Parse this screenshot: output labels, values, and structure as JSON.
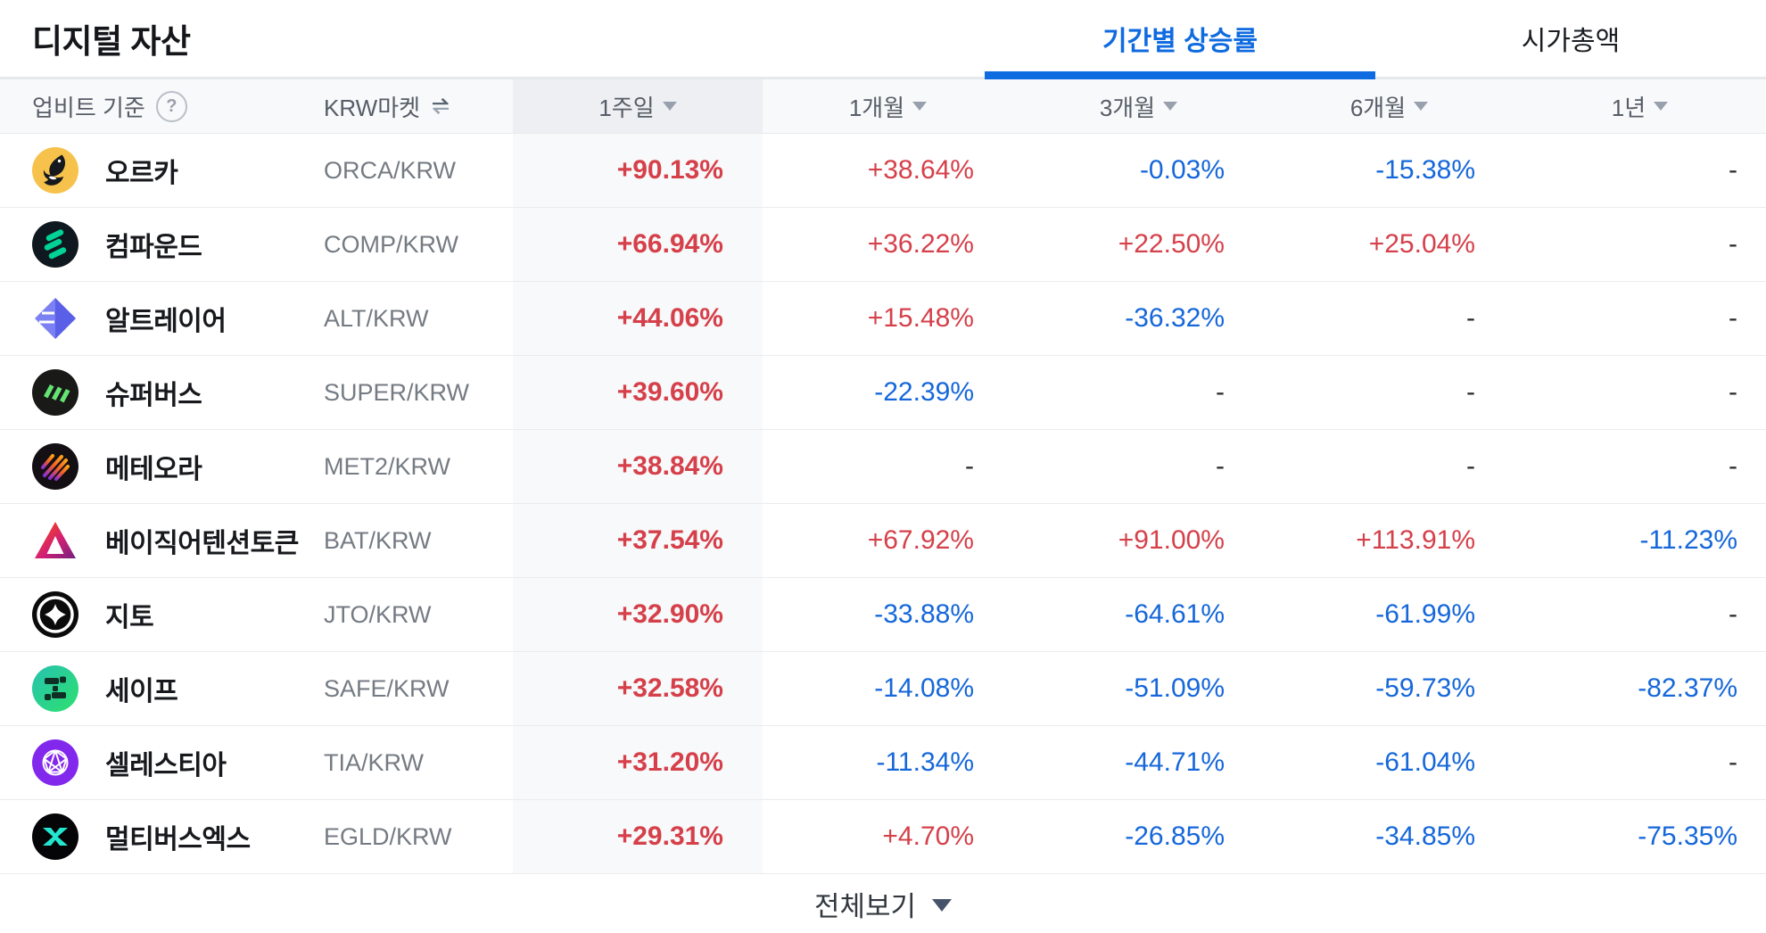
{
  "header": {
    "title": "디지털 자산",
    "tabs": [
      {
        "label": "기간별 상승률",
        "active": true
      },
      {
        "label": "시가총액",
        "active": false
      }
    ]
  },
  "table": {
    "source_label": "업비트 기준",
    "help_glyph": "?",
    "market_label": "KRW마켓",
    "periods": [
      "1주일",
      "1개월",
      "3개월",
      "6개월",
      "1년"
    ],
    "rows": [
      {
        "name": "오르카",
        "pair": "ORCA/KRW",
        "icon": "orca-coin-icon",
        "values": [
          "+90.13%",
          "+38.64%",
          "-0.03%",
          "-15.38%",
          "-"
        ]
      },
      {
        "name": "컴파운드",
        "pair": "COMP/KRW",
        "icon": "compound-coin-icon",
        "values": [
          "+66.94%",
          "+36.22%",
          "+22.50%",
          "+25.04%",
          "-"
        ]
      },
      {
        "name": "알트레이어",
        "pair": "ALT/KRW",
        "icon": "altlayer-coin-icon",
        "values": [
          "+44.06%",
          "+15.48%",
          "-36.32%",
          "-",
          "-"
        ]
      },
      {
        "name": "슈퍼버스",
        "pair": "SUPER/KRW",
        "icon": "superverse-coin-icon",
        "values": [
          "+39.60%",
          "-22.39%",
          "-",
          "-",
          "-"
        ]
      },
      {
        "name": "메테오라",
        "pair": "MET2/KRW",
        "icon": "meteora-coin-icon",
        "values": [
          "+38.84%",
          "-",
          "-",
          "-",
          "-"
        ]
      },
      {
        "name": "베이직어텐션토큰",
        "pair": "BAT/KRW",
        "icon": "bat-coin-icon",
        "values": [
          "+37.54%",
          "+67.92%",
          "+91.00%",
          "+113.91%",
          "-11.23%"
        ]
      },
      {
        "name": "지토",
        "pair": "JTO/KRW",
        "icon": "jito-coin-icon",
        "values": [
          "+32.90%",
          "-33.88%",
          "-64.61%",
          "-61.99%",
          "-"
        ]
      },
      {
        "name": "세이프",
        "pair": "SAFE/KRW",
        "icon": "safe-coin-icon",
        "values": [
          "+32.58%",
          "-14.08%",
          "-51.09%",
          "-59.73%",
          "-82.37%"
        ]
      },
      {
        "name": "셀레스티아",
        "pair": "TIA/KRW",
        "icon": "celestia-coin-icon",
        "values": [
          "+31.20%",
          "-11.34%",
          "-44.71%",
          "-61.04%",
          "-"
        ]
      },
      {
        "name": "멀티버스엑스",
        "pair": "EGLD/KRW",
        "icon": "multiversx-coin-icon",
        "values": [
          "+29.31%",
          "+4.70%",
          "-26.85%",
          "-34.85%",
          "-75.35%"
        ]
      }
    ]
  },
  "footer": {
    "view_all_label": "전체보기"
  },
  "colors": {
    "up": "#d5404a",
    "down": "#1567da",
    "accent": "#0f6be0"
  }
}
